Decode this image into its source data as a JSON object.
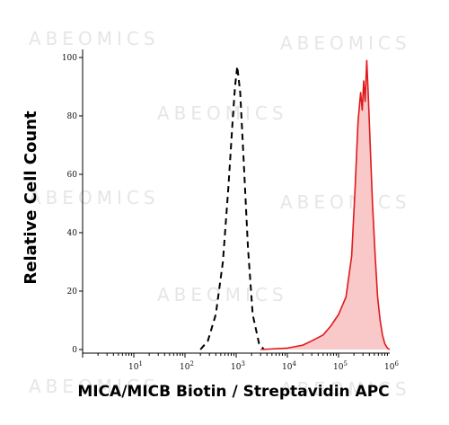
{
  "watermark": "ABEOMICS",
  "chart_data": {
    "type": "area",
    "title": "",
    "xlabel": "MICA/MICB Biotin / Streptavidin APC",
    "ylabel": "Relative Cell Count",
    "x_scale": "log",
    "xlim": [
      1,
      1000000
    ],
    "ylim": [
      0,
      100
    ],
    "x_ticks": [
      {
        "value": 10,
        "base": "10",
        "exp": "1"
      },
      {
        "value": 100,
        "base": "10",
        "exp": "2"
      },
      {
        "value": 1000,
        "base": "10",
        "exp": "3"
      },
      {
        "value": 10000,
        "base": "10",
        "exp": "4"
      },
      {
        "value": 100000,
        "base": "10",
        "exp": "5"
      },
      {
        "value": 1000000,
        "base": "10",
        "exp": "6"
      }
    ],
    "y_ticks": [
      0,
      20,
      40,
      60,
      80,
      100
    ],
    "series": [
      {
        "style": "dashed-black",
        "color": "#000000",
        "fill": "none",
        "points": [
          [
            200,
            0
          ],
          [
            280,
            3
          ],
          [
            400,
            12
          ],
          [
            550,
            30
          ],
          [
            700,
            55
          ],
          [
            850,
            78
          ],
          [
            950,
            90
          ],
          [
            1050,
            97
          ],
          [
            1200,
            88
          ],
          [
            1400,
            65
          ],
          [
            1700,
            35
          ],
          [
            2100,
            12
          ],
          [
            2800,
            2
          ],
          [
            3500,
            0
          ]
        ]
      },
      {
        "style": "solid-red-filled",
        "color": "#e0191b",
        "fill": "#f9c8c8",
        "points": [
          [
            3000,
            0
          ],
          [
            10000,
            0.5
          ],
          [
            20000,
            1.5
          ],
          [
            30000,
            3
          ],
          [
            50000,
            5
          ],
          [
            70000,
            8
          ],
          [
            100000,
            12
          ],
          [
            140000,
            18
          ],
          [
            180000,
            32
          ],
          [
            210000,
            55
          ],
          [
            240000,
            78
          ],
          [
            270000,
            88
          ],
          [
            290000,
            82
          ],
          [
            310000,
            92
          ],
          [
            330000,
            85
          ],
          [
            355000,
            99
          ],
          [
            380000,
            88
          ],
          [
            420000,
            68
          ],
          [
            460000,
            50
          ],
          [
            520000,
            32
          ],
          [
            580000,
            18
          ],
          [
            650000,
            10
          ],
          [
            720000,
            5
          ],
          [
            800000,
            2
          ],
          [
            900000,
            0.5
          ],
          [
            1000000,
            0
          ]
        ]
      }
    ]
  }
}
